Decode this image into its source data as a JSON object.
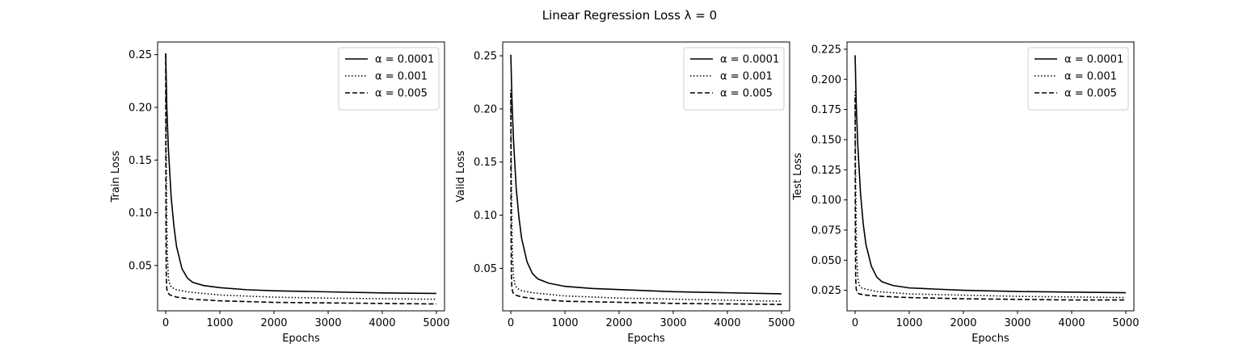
{
  "figure": {
    "title": "Linear Regression Loss λ = 0"
  },
  "chart_data": [
    {
      "type": "line",
      "title": "",
      "xlabel": "Epochs",
      "ylabel": "Train Loss",
      "xlim": [
        -150,
        5150
      ],
      "ylim": [
        0.007,
        0.262
      ],
      "xticks": [
        0,
        1000,
        2000,
        3000,
        4000,
        5000
      ],
      "yticks": [
        0.05,
        0.1,
        0.15,
        0.2,
        0.25
      ],
      "ytick_labels": [
        "0.05",
        "0.10",
        "0.15",
        "0.20",
        "0.25"
      ],
      "legend_position": "top-right",
      "grid": false,
      "series": [
        {
          "name": "α = 0.0001",
          "style": "solid",
          "x": [
            0,
            20,
            50,
            100,
            150,
            200,
            300,
            400,
            500,
            700,
            1000,
            1500,
            2000,
            3000,
            4000,
            5000
          ],
          "y": [
            0.251,
            0.2,
            0.16,
            0.115,
            0.088,
            0.068,
            0.047,
            0.038,
            0.034,
            0.031,
            0.029,
            0.027,
            0.026,
            0.025,
            0.024,
            0.0235
          ]
        },
        {
          "name": "α = 0.001",
          "style": "dotted",
          "x": [
            0,
            5,
            10,
            20,
            30,
            50,
            80,
            120,
            200,
            400,
            1000,
            2000,
            3000,
            4000,
            5000
          ],
          "y": [
            0.251,
            0.2,
            0.15,
            0.09,
            0.06,
            0.038,
            0.031,
            0.029,
            0.027,
            0.025,
            0.022,
            0.02,
            0.019,
            0.0185,
            0.018
          ]
        },
        {
          "name": "α = 0.005",
          "style": "dashed",
          "x": [
            0,
            2,
            5,
            10,
            20,
            40,
            80,
            200,
            500,
            1000,
            2000,
            3000,
            4000,
            5000
          ],
          "y": [
            0.251,
            0.15,
            0.08,
            0.04,
            0.028,
            0.024,
            0.022,
            0.02,
            0.018,
            0.0165,
            0.015,
            0.0145,
            0.014,
            0.0135
          ]
        }
      ]
    },
    {
      "type": "line",
      "title": "",
      "xlabel": "Epochs",
      "ylabel": "Valid Loss",
      "xlim": [
        -150,
        5150
      ],
      "ylim": [
        0.01,
        0.263
      ],
      "xticks": [
        0,
        1000,
        2000,
        3000,
        4000,
        5000
      ],
      "yticks": [
        0.05,
        0.1,
        0.15,
        0.2,
        0.25
      ],
      "ytick_labels": [
        "0.05",
        "0.10",
        "0.15",
        "0.20",
        "0.25"
      ],
      "legend_position": "top-right",
      "grid": false,
      "series": [
        {
          "name": "α = 0.0001",
          "style": "solid",
          "x": [
            0,
            20,
            50,
            100,
            150,
            200,
            300,
            400,
            500,
            700,
            1000,
            1500,
            2000,
            3000,
            4000,
            5000
          ],
          "y": [
            0.251,
            0.21,
            0.17,
            0.125,
            0.098,
            0.078,
            0.056,
            0.045,
            0.04,
            0.036,
            0.033,
            0.031,
            0.03,
            0.028,
            0.027,
            0.026
          ]
        },
        {
          "name": "α = 0.001",
          "style": "dotted",
          "x": [
            0,
            5,
            10,
            20,
            30,
            50,
            80,
            120,
            200,
            400,
            1000,
            2000,
            3000,
            4000,
            5000
          ],
          "y": [
            0.218,
            0.18,
            0.14,
            0.09,
            0.062,
            0.042,
            0.034,
            0.031,
            0.029,
            0.027,
            0.024,
            0.022,
            0.021,
            0.02,
            0.019
          ]
        },
        {
          "name": "α = 0.005",
          "style": "dashed",
          "x": [
            0,
            2,
            5,
            10,
            20,
            40,
            80,
            200,
            500,
            1000,
            2000,
            3000,
            4000,
            5000
          ],
          "y": [
            0.215,
            0.14,
            0.08,
            0.043,
            0.031,
            0.027,
            0.025,
            0.023,
            0.021,
            0.019,
            0.018,
            0.017,
            0.0165,
            0.016
          ]
        }
      ]
    },
    {
      "type": "line",
      "title": "",
      "xlabel": "Epochs",
      "ylabel": "Test Loss",
      "xlim": [
        -150,
        5150
      ],
      "ylim": [
        0.008,
        0.231
      ],
      "xticks": [
        0,
        1000,
        2000,
        3000,
        4000,
        5000
      ],
      "yticks": [
        0.025,
        0.05,
        0.075,
        0.1,
        0.125,
        0.15,
        0.175,
        0.2,
        0.225
      ],
      "ytick_labels": [
        "0.025",
        "0.050",
        "0.075",
        "0.100",
        "0.125",
        "0.150",
        "0.175",
        "0.200",
        "0.225"
      ],
      "legend_position": "top-right",
      "grid": false,
      "series": [
        {
          "name": "α = 0.0001",
          "style": "solid",
          "x": [
            0,
            20,
            50,
            100,
            150,
            200,
            300,
            400,
            500,
            700,
            1000,
            1500,
            2000,
            3000,
            4000,
            5000
          ],
          "y": [
            0.22,
            0.18,
            0.145,
            0.105,
            0.08,
            0.063,
            0.045,
            0.036,
            0.032,
            0.029,
            0.027,
            0.026,
            0.025,
            0.024,
            0.0235,
            0.023
          ]
        },
        {
          "name": "α = 0.001",
          "style": "dotted",
          "x": [
            0,
            5,
            10,
            20,
            30,
            50,
            80,
            120,
            200,
            400,
            1000,
            2000,
            3000,
            4000,
            5000
          ],
          "y": [
            0.19,
            0.15,
            0.115,
            0.075,
            0.052,
            0.035,
            0.029,
            0.027,
            0.026,
            0.024,
            0.022,
            0.021,
            0.02,
            0.0195,
            0.019
          ]
        },
        {
          "name": "α = 0.005",
          "style": "dashed",
          "x": [
            0,
            2,
            5,
            10,
            20,
            40,
            80,
            200,
            500,
            1000,
            2000,
            3000,
            4000,
            5000
          ],
          "y": [
            0.185,
            0.12,
            0.065,
            0.035,
            0.026,
            0.023,
            0.022,
            0.021,
            0.02,
            0.019,
            0.018,
            0.0175,
            0.017,
            0.017
          ]
        }
      ]
    }
  ]
}
